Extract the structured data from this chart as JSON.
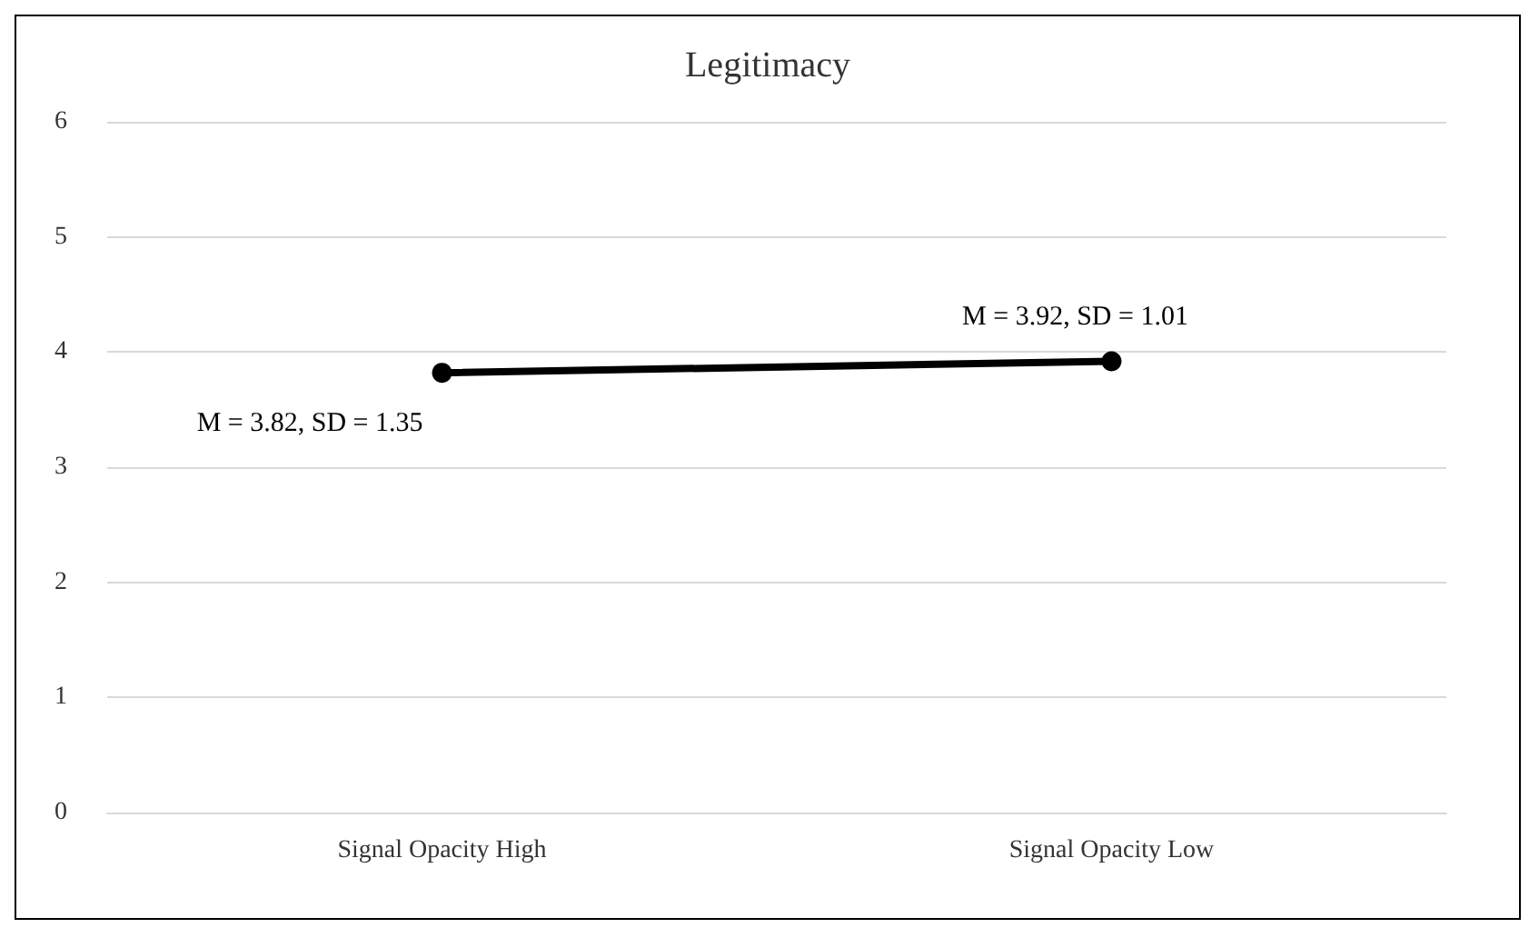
{
  "chart_data": {
    "type": "line",
    "title": "Legitimacy",
    "categories": [
      "Signal Opacity High",
      "Signal Opacity Low"
    ],
    "series": [
      {
        "color": "#000000",
        "values": [
          3.82,
          3.92
        ],
        "value_labels": [
          "M = 3.82, SD = 1.35",
          "M = 3.92, SD = 1.01"
        ]
      }
    ],
    "ylim": [
      0,
      6
    ],
    "yticks": [
      0,
      1,
      2,
      3,
      4,
      5,
      6
    ],
    "grid": "y",
    "marker": "circle",
    "line_style": "solid"
  }
}
